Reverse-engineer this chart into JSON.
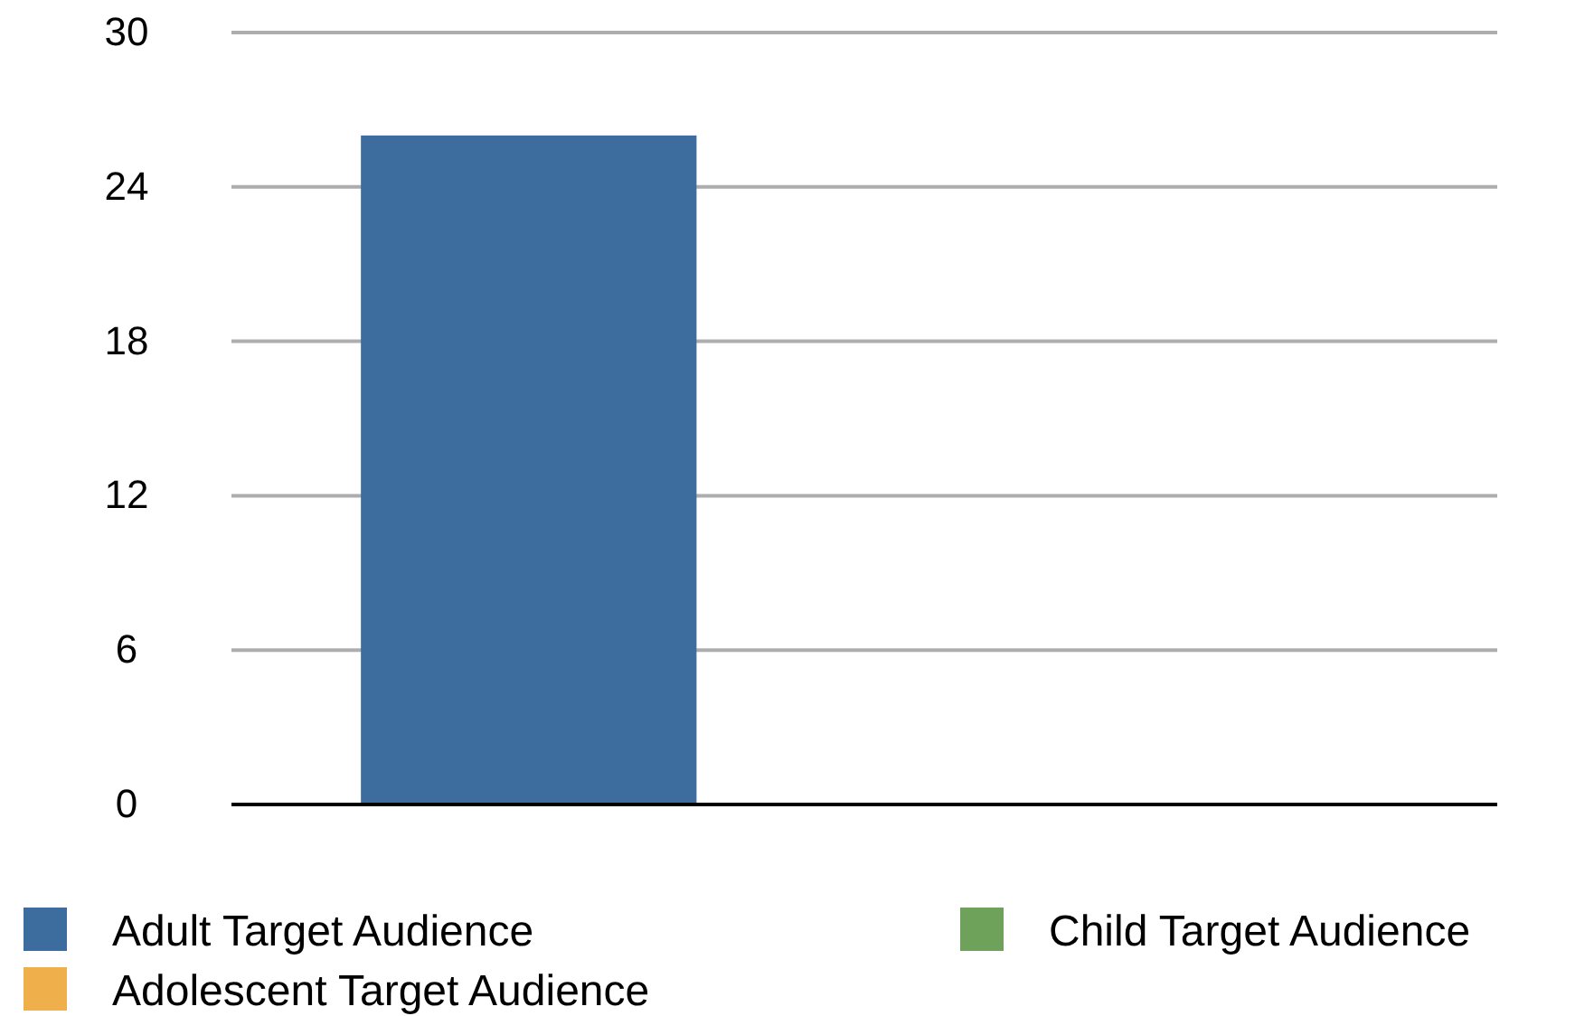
{
  "chart_data": {
    "type": "bar",
    "categories": [
      null
    ],
    "series": [
      {
        "name": "Adult Target Audience",
        "color": "#3d6c9e",
        "values": [
          26
        ]
      },
      {
        "name": "Adolescent Target Audience",
        "color": "#efb04c",
        "values": [
          0
        ]
      },
      {
        "name": "Child Target Audience",
        "color": "#6ea25a",
        "values": [
          0
        ]
      }
    ],
    "ylim": [
      0,
      30
    ],
    "yticks": [
      0,
      6,
      12,
      18,
      24,
      30
    ],
    "grid": "y",
    "legend": "bottom"
  }
}
